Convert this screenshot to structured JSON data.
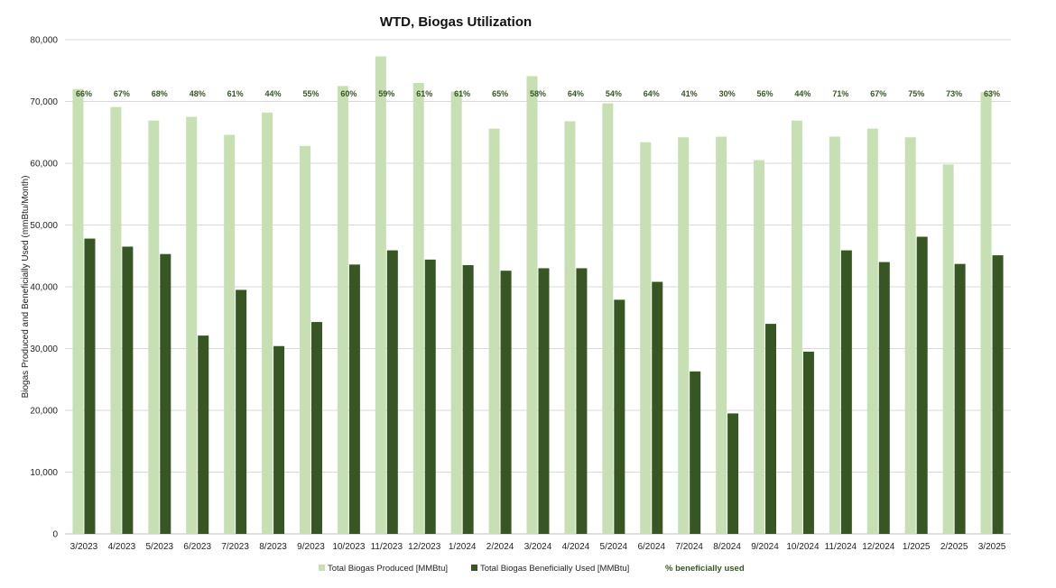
{
  "chart_data": {
    "type": "bar",
    "title": "WTD, Biogas Utilization",
    "ylabel": "Biogas Produced and Beneficially Used (mmBtu/Month)",
    "xlabel": "",
    "ylim": [
      0,
      80000
    ],
    "yticks": [
      0,
      10000,
      20000,
      30000,
      40000,
      50000,
      60000,
      70000,
      80000
    ],
    "ytick_labels": [
      "0",
      "10,000",
      "20,000",
      "30,000",
      "40,000",
      "50,000",
      "60,000",
      "70,000",
      "80,000"
    ],
    "grid": true,
    "legend_position": "bottom",
    "categories": [
      "3/2023",
      "4/2023",
      "5/2023",
      "6/2023",
      "7/2023",
      "8/2023",
      "9/2023",
      "10/2023",
      "11/2023",
      "12/2023",
      "1/2024",
      "2/2024",
      "3/2024",
      "4/2024",
      "5/2024",
      "6/2024",
      "7/2024",
      "8/2024",
      "9/2024",
      "10/2024",
      "11/2024",
      "12/2024",
      "1/2025",
      "2/2025",
      "3/2025"
    ],
    "series": [
      {
        "name": "Total Biogas Produced [MMBtu]",
        "color": "#c6e0b4",
        "values": [
          72000,
          69100,
          66900,
          67500,
          64600,
          68200,
          62800,
          72500,
          77300,
          73000,
          71600,
          65600,
          74100,
          66800,
          69700,
          63400,
          64200,
          64300,
          60500,
          66900,
          64300,
          65600,
          64200,
          59800,
          71500
        ]
      },
      {
        "name": "Total Biogas Beneficially Used [MMBtu]",
        "color": "#375623",
        "values": [
          47800,
          46500,
          45300,
          32100,
          39500,
          30400,
          34300,
          43600,
          45900,
          44400,
          43500,
          42600,
          43000,
          43000,
          37900,
          40800,
          26300,
          19500,
          34000,
          29500,
          45900,
          44000,
          48100,
          43700,
          45100
        ]
      }
    ],
    "percent_series": {
      "name": "% beneficially used",
      "color": "#375623",
      "labels": [
        "66%",
        "67%",
        "68%",
        "48%",
        "61%",
        "44%",
        "55%",
        "60%",
        "59%",
        "61%",
        "61%",
        "65%",
        "58%",
        "64%",
        "54%",
        "64%",
        "41%",
        "30%",
        "56%",
        "44%",
        "71%",
        "67%",
        "75%",
        "73%",
        "63%"
      ]
    }
  }
}
